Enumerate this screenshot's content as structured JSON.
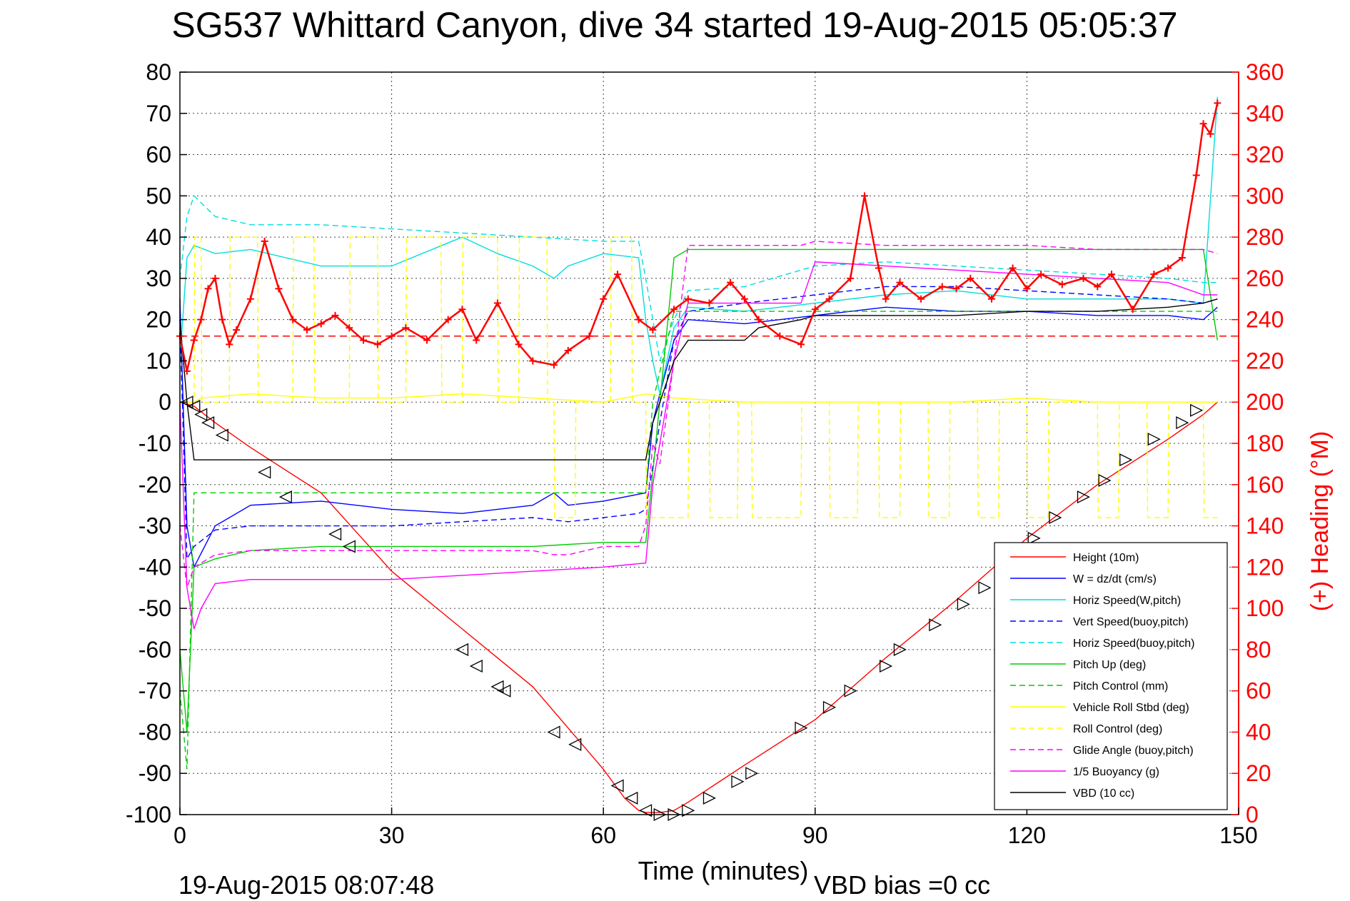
{
  "chart_data": {
    "type": "line",
    "title": "SG537 Whittard Canyon, dive 34 started 19-Aug-2015 05:05:37",
    "xlabel": "Time (minutes)",
    "ylabel_right": "(+) Heading (°M)",
    "xlim": [
      0,
      150
    ],
    "ylim_left": [
      -100,
      80
    ],
    "ylim_right": [
      0,
      360
    ],
    "x_ticks": [
      "0",
      "30",
      "60",
      "90",
      "120",
      "150"
    ],
    "y_ticks_left": [
      "80",
      "70",
      "60",
      "50",
      "40",
      "30",
      "20",
      "10",
      "0",
      "-10",
      "-20",
      "-30",
      "-40",
      "-50",
      "-60",
      "-70",
      "-80",
      "-90",
      "-100"
    ],
    "y_ticks_right": [
      "360",
      "340",
      "320",
      "300",
      "280",
      "260",
      "240",
      "220",
      "200",
      "180",
      "160",
      "140",
      "120",
      "100",
      "80",
      "60",
      "40",
      "20",
      "0"
    ],
    "grid": true,
    "footer_left": "19-Aug-2015 08:07:48",
    "footer_right": "VBD bias =0 cc",
    "legend_position": "lower-right",
    "series": [
      {
        "name": "Height (10m)",
        "color": "#ff0000",
        "dash": "solid",
        "x": [
          0,
          2,
          5,
          10,
          20,
          30,
          40,
          50,
          55,
          60,
          63,
          65,
          66,
          68,
          70,
          72,
          80,
          90,
          100,
          110,
          120,
          130,
          140,
          145,
          147
        ],
        "y": [
          0,
          -1,
          -5,
          -11,
          -22,
          -41,
          -55,
          -69,
          -79,
          -89,
          -96,
          -99,
          -99.5,
          -99.5,
          -99,
          -97,
          -88,
          -77,
          -62,
          -48,
          -33,
          -20,
          -9,
          -3,
          0
        ]
      },
      {
        "name": "W = dz/dt (cm/s)",
        "color": "#0000ff",
        "dash": "solid",
        "x": [
          0,
          1,
          2,
          5,
          10,
          20,
          30,
          40,
          50,
          53,
          55,
          60,
          66,
          67,
          68,
          70,
          72,
          80,
          90,
          100,
          110,
          120,
          130,
          140,
          145,
          147
        ],
        "y": [
          25,
          -30,
          -40,
          -30,
          -25,
          -24,
          -26,
          -27,
          -25,
          -22,
          -25,
          -24,
          -22,
          -5,
          2,
          15,
          20,
          19,
          21,
          23,
          22,
          22,
          21,
          21,
          20,
          23
        ]
      },
      {
        "name": "Horiz Speed(W,pitch)",
        "color": "#00dddd",
        "dash": "solid",
        "x": [
          0,
          1,
          2,
          5,
          10,
          20,
          30,
          40,
          45,
          50,
          53,
          55,
          60,
          65,
          66,
          67,
          68,
          70,
          72,
          80,
          90,
          100,
          110,
          120,
          130,
          140,
          145,
          147
        ],
        "y": [
          10,
          35,
          38,
          36,
          37,
          33,
          33,
          40,
          36,
          33,
          30,
          33,
          36,
          35,
          20,
          10,
          2,
          18,
          23,
          22,
          24,
          26,
          27,
          25,
          25,
          25,
          24,
          74
        ]
      },
      {
        "name": "Vert Speed(buoy,pitch)",
        "color": "#0000ff",
        "dash": "dashed",
        "x": [
          0,
          1,
          2,
          5,
          10,
          20,
          30,
          40,
          50,
          55,
          60,
          65,
          66,
          68,
          70,
          72,
          80,
          90,
          100,
          110,
          120,
          130,
          140,
          145,
          147
        ],
        "y": [
          20,
          -38,
          -35,
          -31,
          -30,
          -30,
          -30,
          -29,
          -28,
          -29,
          -28,
          -27,
          -26,
          -5,
          15,
          22,
          24,
          26,
          28,
          28,
          27,
          26,
          25,
          24,
          25
        ]
      },
      {
        "name": "Horiz Speed(buoy,pitch)",
        "color": "#00dddd",
        "dash": "dashed",
        "x": [
          0,
          1,
          2,
          5,
          10,
          20,
          30,
          40,
          50,
          60,
          65,
          66,
          68,
          70,
          72,
          80,
          88,
          90,
          100,
          110,
          120,
          130,
          140,
          145,
          147
        ],
        "y": [
          30,
          45,
          50,
          45,
          43,
          43,
          42,
          41,
          40,
          39,
          39,
          30,
          10,
          20,
          27,
          28,
          32,
          33,
          34,
          33,
          32,
          31,
          30,
          29,
          29
        ]
      },
      {
        "name": "Pitch Up (deg)",
        "color": "#00cc00",
        "dash": "solid",
        "x": [
          0,
          1,
          2,
          5,
          10,
          20,
          30,
          40,
          50,
          60,
          66,
          68,
          70,
          72,
          80,
          90,
          100,
          110,
          120,
          130,
          140,
          145,
          147
        ],
        "y": [
          -60,
          -80,
          -40,
          -38,
          -36,
          -35,
          -35,
          -35,
          -35,
          -34,
          -34,
          0,
          35,
          37,
          37,
          37,
          37,
          37,
          37,
          37,
          37,
          37,
          15
        ]
      },
      {
        "name": "Pitch Control (mm)",
        "color": "#00cc00",
        "dash": "dashed",
        "x": [
          0,
          1,
          2,
          5,
          10,
          20,
          30,
          40,
          50,
          60,
          66,
          67,
          70,
          72,
          80,
          90,
          100,
          110,
          120,
          130,
          140,
          145,
          147
        ],
        "y": [
          -70,
          -89,
          -22,
          -22,
          -22,
          -22,
          -22,
          -22,
          -22,
          -22,
          -22,
          0,
          22,
          22,
          22,
          22,
          22,
          22,
          22,
          22,
          22,
          22,
          22
        ]
      },
      {
        "name": "Vehicle Roll Stbd (deg)",
        "color": "#ffff00",
        "dash": "solid",
        "x": [
          0,
          2,
          3,
          10,
          20,
          30,
          40,
          50,
          60,
          66,
          70,
          80,
          90,
          100,
          110,
          120,
          130,
          140,
          147
        ],
        "y": [
          0,
          0,
          1,
          2,
          1,
          1,
          2,
          1,
          0,
          2,
          1,
          0,
          0,
          0,
          0,
          1,
          0,
          0,
          0
        ]
      },
      {
        "name": "Roll Control (deg)",
        "color": "#ffff00",
        "dash": "dashed",
        "x": [
          0,
          2,
          2.1,
          3,
          3.1,
          7,
          7.1,
          11,
          11.1,
          16,
          16.1,
          19,
          19.1,
          24,
          24.1,
          28,
          28.1,
          32,
          32.1,
          37,
          37.1,
          40,
          40.1,
          45,
          45.1,
          48,
          48.1,
          52,
          52.1,
          53,
          53.1,
          56,
          56.1,
          61,
          61.1,
          64,
          64.1,
          66,
          66.1,
          72,
          72.1,
          75,
          75.1,
          79,
          79.1,
          81,
          81.1,
          88,
          88.1,
          92,
          92.1,
          96,
          96.1,
          99,
          99.1,
          102,
          102.1,
          106,
          106.1,
          109,
          109.1,
          113,
          113.1,
          116,
          116.1,
          120,
          120.1,
          123,
          123.1,
          130,
          130.1,
          133,
          133.1,
          137,
          137.1,
          140,
          140.1,
          145,
          145.1,
          147
        ],
        "y": [
          0,
          0,
          40,
          40,
          0,
          0,
          40,
          40,
          0,
          0,
          40,
          40,
          0,
          0,
          40,
          40,
          0,
          0,
          40,
          40,
          0,
          0,
          40,
          40,
          0,
          0,
          40,
          40,
          0,
          0,
          -28,
          -28,
          0,
          0,
          40,
          40,
          0,
          0,
          -28,
          -28,
          0,
          0,
          -28,
          -28,
          0,
          0,
          -28,
          -28,
          0,
          0,
          -28,
          -28,
          0,
          0,
          -28,
          -28,
          0,
          0,
          -28,
          -28,
          0,
          0,
          -28,
          -28,
          0,
          0,
          -28,
          -28,
          0,
          0,
          -28,
          -28,
          0,
          0,
          -28,
          -28,
          0,
          0,
          -28,
          -28
        ]
      },
      {
        "name": "Glide Angle (buoy,pitch)",
        "color": "#ff00ff",
        "dash": "dashed",
        "x": [
          0,
          1,
          2,
          5,
          10,
          20,
          30,
          40,
          50,
          53,
          55,
          60,
          65,
          66,
          67,
          68,
          70,
          72,
          80,
          88,
          90,
          100,
          110,
          120,
          130,
          140,
          145,
          147
        ],
        "y": [
          -30,
          -45,
          -40,
          -37,
          -36,
          -36,
          -36,
          -36,
          -36,
          -37,
          -37,
          -35,
          -35,
          -30,
          -10,
          -15,
          10,
          38,
          38,
          38,
          39,
          38,
          38,
          38,
          37,
          37,
          37,
          36
        ]
      },
      {
        "name": "1/5 Buoyancy (g)",
        "color": "#ff00ff",
        "dash": "solid",
        "x": [
          0,
          1,
          2,
          3,
          5,
          10,
          20,
          30,
          40,
          50,
          60,
          66,
          67,
          68,
          70,
          72,
          80,
          88,
          90,
          100,
          110,
          120,
          130,
          140,
          145,
          147
        ],
        "y": [
          0,
          -45,
          -55,
          -50,
          -44,
          -43,
          -43,
          -43,
          -42,
          -41,
          -40,
          -39,
          -20,
          -10,
          10,
          24,
          24,
          24,
          34,
          33,
          32,
          31,
          30,
          29,
          26,
          26
        ]
      },
      {
        "name": "VBD (10 cc)",
        "color": "#000000",
        "dash": "solid",
        "x": [
          0,
          1,
          2,
          10,
          20,
          30,
          40,
          50,
          60,
          66,
          67,
          70,
          72,
          80,
          82,
          88,
          90,
          100,
          110,
          120,
          130,
          140,
          145,
          147
        ],
        "y": [
          20,
          0,
          -14,
          -14,
          -14,
          -14,
          -14,
          -14,
          -14,
          -14,
          -5,
          10,
          15,
          15,
          18,
          20,
          21,
          21,
          21,
          22,
          22,
          23,
          24,
          25
        ]
      },
      {
        "name": "Heading",
        "color": "#ff0000",
        "dash": "solid",
        "axis": "right",
        "marker": "+",
        "x": [
          0,
          1,
          2,
          3,
          4,
          5,
          6,
          7,
          8,
          10,
          12,
          14,
          16,
          18,
          20,
          22,
          24,
          26,
          28,
          30,
          32,
          35,
          38,
          40,
          42,
          45,
          48,
          50,
          53,
          55,
          58,
          60,
          62,
          65,
          67,
          70,
          72,
          75,
          78,
          80,
          82,
          85,
          88,
          90,
          92,
          95,
          97,
          99,
          100,
          102,
          105,
          108,
          110,
          112,
          115,
          118,
          120,
          122,
          125,
          128,
          130,
          132,
          135,
          138,
          140,
          142,
          144,
          145,
          146,
          147
        ],
        "y": [
          232,
          215,
          230,
          240,
          255,
          260,
          240,
          228,
          235,
          250,
          278,
          255,
          240,
          235,
          238,
          242,
          236,
          230,
          228,
          232,
          236,
          230,
          240,
          245,
          230,
          248,
          228,
          220,
          218,
          225,
          232,
          250,
          262,
          240,
          235,
          245,
          250,
          248,
          258,
          250,
          240,
          232,
          228,
          245,
          250,
          260,
          300,
          265,
          250,
          258,
          250,
          256,
          255,
          260,
          250,
          265,
          255,
          262,
          257,
          260,
          256,
          262,
          245,
          262,
          265,
          270,
          310,
          335,
          330,
          345
        ]
      }
    ],
    "reference_lines": [
      {
        "axis": "right",
        "y": 232,
        "color": "#ff0000",
        "dash": "dashed"
      }
    ],
    "height_markers": {
      "x": [
        1,
        2,
        3,
        4,
        6,
        12,
        15,
        22,
        24,
        40,
        42,
        45,
        46,
        53,
        56,
        62,
        64,
        66,
        68,
        70,
        72,
        75,
        79,
        81,
        88,
        92,
        95,
        100,
        102,
        107,
        111,
        114,
        121,
        124,
        128,
        131,
        134,
        138,
        142,
        144
      ],
      "y": [
        0,
        -1,
        -3,
        -5,
        -8,
        -17,
        -23,
        -32,
        -35,
        -60,
        -64,
        -69,
        -70,
        -80,
        -83,
        -93,
        -96,
        -99,
        -100,
        -100,
        -99,
        -96,
        -92,
        -90,
        -79,
        -74,
        -70,
        -64,
        -60,
        -54,
        -49,
        -45,
        -33,
        -28,
        -23,
        -19,
        -14,
        -9,
        -5,
        -2
      ]
    }
  }
}
